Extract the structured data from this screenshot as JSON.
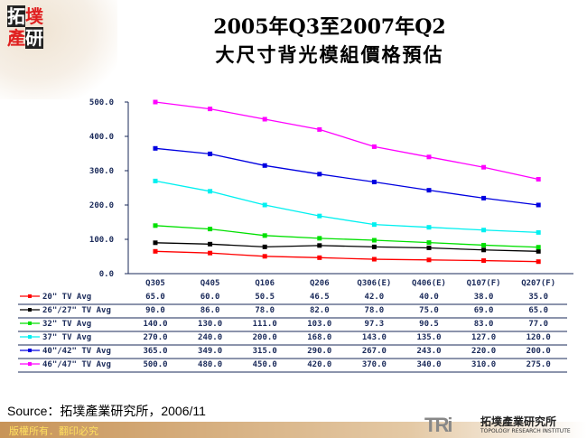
{
  "title_line1": "2005年Q3至2007年Q2",
  "title_line2": "大尺寸背光模組價格預估",
  "logo": "拓墣產研",
  "source": "Source：拓墣產業研究所，2006/11",
  "footer": "版權所有．翻印必究",
  "brand": {
    "mark": "TRi",
    "name_cn": "拓墣產業研究所",
    "name_en": "TOPOLOGY RESEARCH INSTITUTE"
  },
  "chart_data": {
    "type": "line",
    "categories": [
      "Q305",
      "Q405",
      "Q106",
      "Q206",
      "Q306(E)",
      "Q406(E)",
      "Q107(F)",
      "Q207(F)"
    ],
    "ylim": [
      0,
      500
    ],
    "yticks": [
      "0.0",
      "100.0",
      "200.0",
      "300.0",
      "400.0",
      "500.0"
    ],
    "grid": false,
    "legend": "data table below chart",
    "series": [
      {
        "name": "20\" TV Avg",
        "color": "#ff0000",
        "marker": "+",
        "values": [
          65.0,
          60.0,
          50.5,
          46.5,
          42.0,
          40.0,
          38.0,
          35.0
        ],
        "labels": [
          "65.0",
          "60.0",
          "50.5",
          "46.5",
          "42.0",
          "40.0",
          "38.0",
          "35.0"
        ]
      },
      {
        "name": "26\"/27\" TV Avg",
        "color": "#000000",
        "marker": "square",
        "values": [
          90.0,
          86.0,
          78.0,
          82.0,
          78.0,
          75.0,
          69.0,
          65.0
        ],
        "labels": [
          "90.0",
          "86.0",
          "78.0",
          "82.0",
          "78.0",
          "75.0",
          "69.0",
          "65.0"
        ]
      },
      {
        "name": "32\" TV Avg",
        "color": "#00e000",
        "marker": "triangle",
        "values": [
          140.0,
          130.0,
          111.0,
          103.0,
          97.3,
          90.5,
          83.0,
          77.0
        ],
        "labels": [
          "140.0",
          "130.0",
          "111.0",
          "103.0",
          "97.3",
          "90.5",
          "83.0",
          "77.0"
        ]
      },
      {
        "name": "37\" TV Avg",
        "color": "#00f0f0",
        "marker": "x",
        "values": [
          270.0,
          240.0,
          200.0,
          168.0,
          143.0,
          135.0,
          127.0,
          120.0
        ],
        "labels": [
          "270.0",
          "240.0",
          "200.0",
          "168.0",
          "143.0",
          "135.0",
          "127.0",
          "120.0"
        ]
      },
      {
        "name": "40\"/42\" TV Avg",
        "color": "#0000e0",
        "marker": "*",
        "values": [
          365.0,
          349.0,
          315.0,
          290.0,
          267.0,
          243.0,
          220.0,
          200.0
        ],
        "labels": [
          "365.0",
          "349.0",
          "315.0",
          "290.0",
          "267.0",
          "243.0",
          "220.0",
          "200.0"
        ]
      },
      {
        "name": "46\"/47\" TV Avg",
        "color": "#ff00ff",
        "marker": "square",
        "values": [
          500.0,
          480.0,
          450.0,
          420.0,
          370.0,
          340.0,
          310.0,
          275.0
        ],
        "labels": [
          "500.0",
          "480.0",
          "450.0",
          "420.0",
          "370.0",
          "340.0",
          "310.0",
          "275.0"
        ]
      }
    ]
  }
}
